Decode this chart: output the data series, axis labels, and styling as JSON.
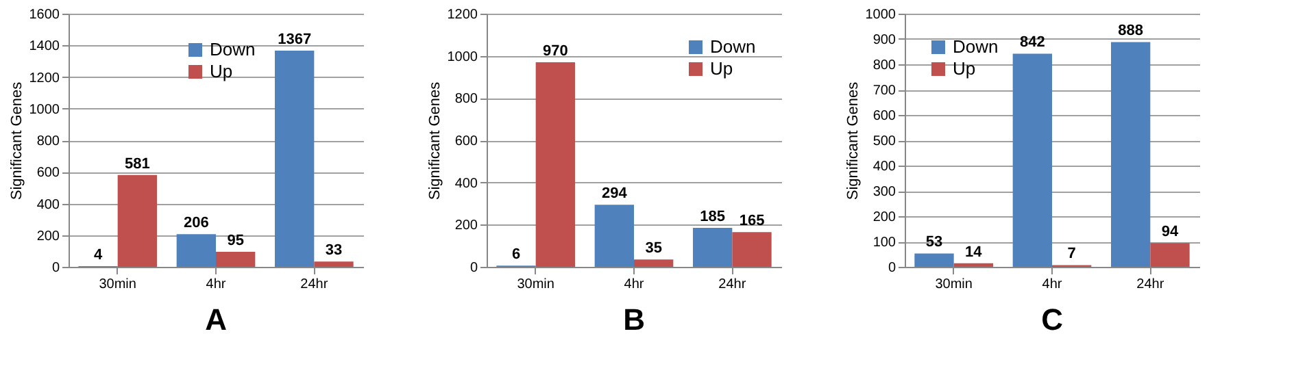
{
  "chart_data": [
    {
      "type": "bar",
      "title": "A",
      "ylabel": "Significant Genes",
      "categories": [
        "30min",
        "4hr",
        "24hr"
      ],
      "series": [
        {
          "name": "Down",
          "color": "#4f81bd",
          "values": [
            4,
            206,
            1367
          ]
        },
        {
          "name": "Up",
          "color": "#c0504d",
          "values": [
            581,
            95,
            33
          ]
        }
      ],
      "ylim": [
        0,
        1600
      ],
      "yticks": [
        0,
        200,
        400,
        600,
        800,
        1000,
        1200,
        1400,
        1600
      ],
      "grid": "y",
      "legend": "top",
      "data_labels": true
    },
    {
      "type": "bar",
      "title": "B",
      "ylabel": "Significant Genes",
      "categories": [
        "30min",
        "4hr",
        "24hr"
      ],
      "series": [
        {
          "name": "Down",
          "color": "#4f81bd",
          "values": [
            6,
            294,
            185
          ]
        },
        {
          "name": "Up",
          "color": "#c0504d",
          "values": [
            970,
            35,
            165
          ]
        }
      ],
      "ylim": [
        0,
        1200
      ],
      "yticks": [
        0,
        200,
        400,
        600,
        800,
        1000,
        1200
      ],
      "grid": "y",
      "legend": "top right",
      "data_labels": true
    },
    {
      "type": "bar",
      "title": "C",
      "ylabel": "Significant Genes",
      "categories": [
        "30min",
        "4hr",
        "24hr"
      ],
      "series": [
        {
          "name": "Down",
          "color": "#4f81bd",
          "values": [
            53,
            842,
            888
          ]
        },
        {
          "name": "Up",
          "color": "#c0504d",
          "values": [
            14,
            7,
            94
          ]
        }
      ],
      "ylim": [
        0,
        1000
      ],
      "yticks": [
        0,
        100,
        200,
        300,
        400,
        500,
        600,
        700,
        800,
        900,
        1000
      ],
      "grid": "y",
      "legend": "top left",
      "data_labels": true
    }
  ]
}
